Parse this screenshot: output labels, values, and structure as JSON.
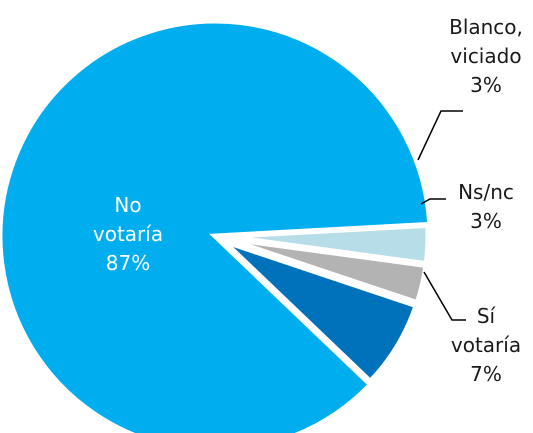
{
  "chart_data": {
    "type": "pie",
    "title": "",
    "slices": [
      {
        "label_lines": [
          "No",
          "votaría"
        ],
        "value": 87,
        "value_label": "87%",
        "color": "#00adef"
      },
      {
        "label_lines": [
          "Sí",
          "votaría"
        ],
        "value": 7,
        "value_label": "7%",
        "color": "#0072bc"
      },
      {
        "label_lines": [
          "Ns/nc"
        ],
        "value": 3,
        "value_label": "3%",
        "color": "#b3b3b3"
      },
      {
        "label_lines": [
          "Blanco,",
          "viciado"
        ],
        "value": 3,
        "value_label": "3%",
        "color": "#b7dde9"
      }
    ],
    "label_text_color": "#1a1a1a",
    "inside_label_color": "#ffffff",
    "leader_line_color": "#000000"
  }
}
